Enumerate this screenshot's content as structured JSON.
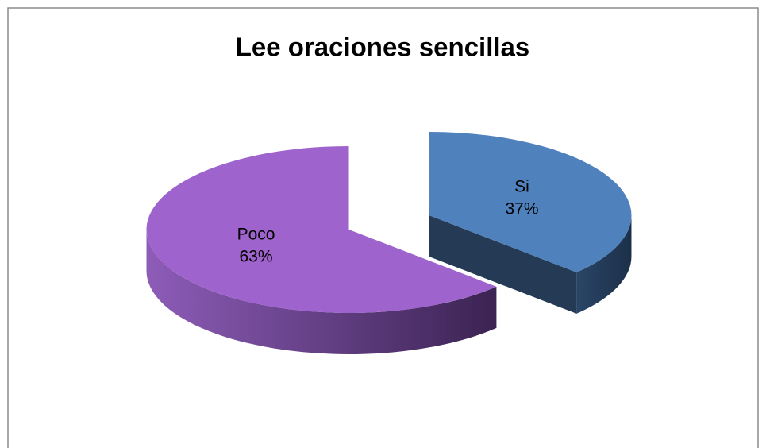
{
  "chart_data": {
    "type": "pie",
    "title": "Lee oraciones sencillas",
    "categories": [
      "Si",
      "Poco"
    ],
    "values": [
      37,
      63
    ],
    "value_labels": [
      "37%",
      "63%"
    ],
    "colors": [
      "#4f81bd",
      "#9e63cc"
    ]
  }
}
